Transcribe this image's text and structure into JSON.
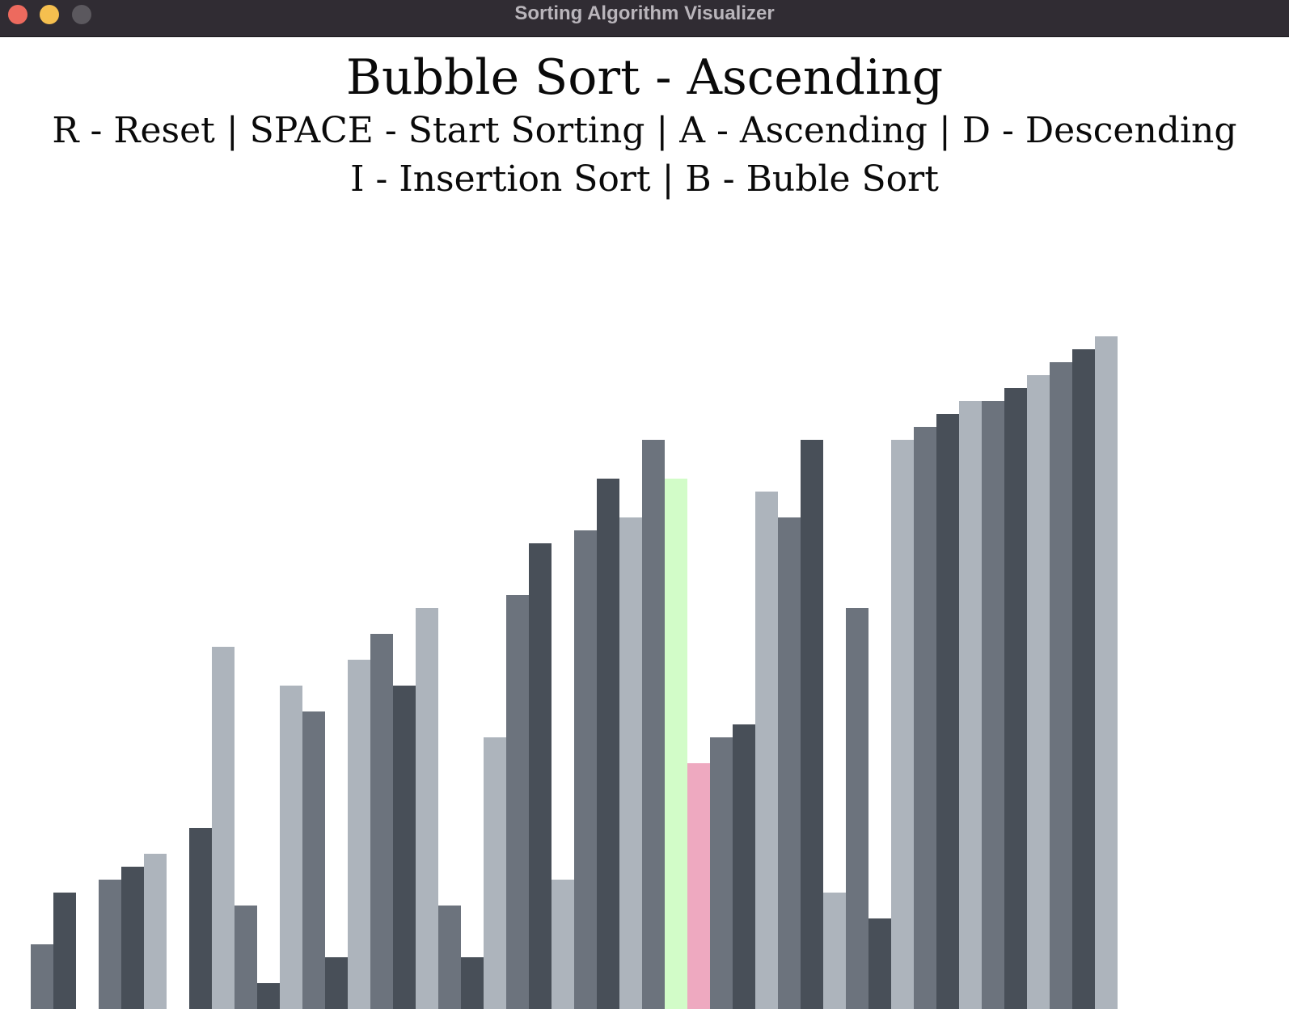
{
  "window": {
    "title": "Sorting Algorithm Visualizer"
  },
  "header": {
    "title": "Bubble Sort - Ascending",
    "controls_line_1": "R - Reset | SPACE - Start Sorting | A - Ascending | D - Descending",
    "controls_line_2": "I - Insertion Sort | B - Buble Sort"
  },
  "colors": {
    "bar_shades": [
      "#6c737d",
      "#484f58",
      "#adb4bc"
    ],
    "compare_a": "#d2fcc8",
    "compare_b": "#eea9c0",
    "background": "#ffffff"
  },
  "chart_data": {
    "type": "bar",
    "values": [
      5,
      9,
      0,
      10,
      11,
      12,
      0,
      14,
      28,
      8,
      2,
      25,
      23,
      4,
      27,
      29,
      25,
      31,
      8,
      4,
      21,
      32,
      36,
      10,
      37,
      41,
      38,
      44,
      41,
      19,
      21,
      22,
      40,
      38,
      44,
      9,
      31,
      7,
      44,
      45,
      46,
      47,
      47,
      48,
      49,
      50,
      51,
      52
    ],
    "highlight_indices": [
      28,
      29
    ],
    "highlight_colors": [
      "#d2fcc8",
      "#eea9c0"
    ],
    "ylim": [
      0,
      52
    ]
  }
}
